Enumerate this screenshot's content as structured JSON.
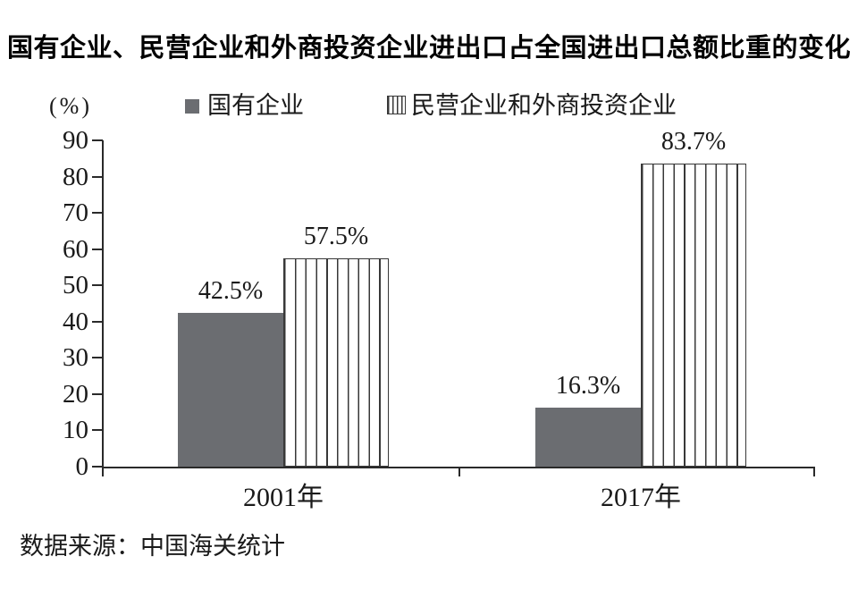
{
  "title": "国有企业、民营企业和外商投资企业进出口占全国进出口总额比重的变化",
  "y_unit": "(%)",
  "legend": [
    {
      "label": "国有企业",
      "swatch": "solid-gray"
    },
    {
      "label": "民营企业和外商投资企业",
      "swatch": "vertical-stripes"
    }
  ],
  "source_note": "数据来源：中国海关统计",
  "colors": {
    "bar_solid": "#6b6d71",
    "stripe": "#383838",
    "axis": "#2a2a2a",
    "text": "#1a1a1a"
  },
  "chart_data": {
    "type": "bar",
    "title": "国有企业、民营企业和外商投资企业进出口占全国进出口总额比重的变化",
    "categories": [
      "2001年",
      "2017年"
    ],
    "series": [
      {
        "name": "国有企业",
        "values": [
          42.5,
          16.3
        ],
        "labels": [
          "42.5%",
          "16.3%"
        ]
      },
      {
        "name": "民营企业和外商投资企业",
        "values": [
          57.5,
          83.7
        ],
        "labels": [
          "57.5%",
          "83.7%"
        ]
      }
    ],
    "xlabel": "",
    "ylabel": "(%)",
    "ylim": [
      0,
      90
    ],
    "y_ticks": [
      0,
      10,
      20,
      30,
      40,
      50,
      60,
      70,
      80,
      90
    ],
    "grid": false,
    "legend_position": "top",
    "source": "数据来源：中国海关统计"
  }
}
